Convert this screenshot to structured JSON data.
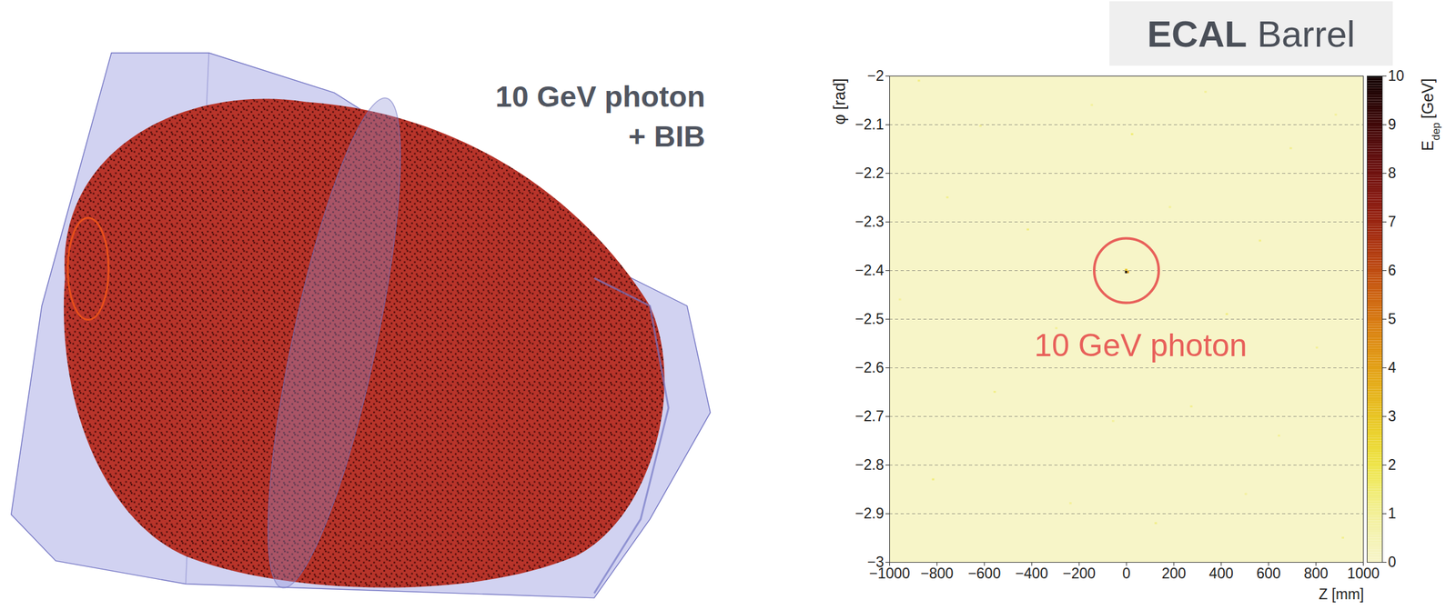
{
  "event_display": {
    "label": [
      "10 GeV photon",
      "+ BIB"
    ]
  },
  "chart_data": {
    "type": "heatmap",
    "title": "ECAL Barrel",
    "x_label": "Z [mm]",
    "y_label": "φ [rad]",
    "xlim": [
      -1000,
      1000
    ],
    "xticks": [
      -1000,
      -800,
      -600,
      -400,
      -200,
      0,
      200,
      400,
      600,
      800,
      1000
    ],
    "ylim": [
      -3,
      -2
    ],
    "yticks": [
      -3,
      -2.9,
      -2.8,
      -2.7,
      -2.6,
      -2.5,
      -2.4,
      -2.3,
      -2.2,
      -2.1,
      -2
    ],
    "grid": "y",
    "colorbar": {
      "label": {
        "text": "E",
        "subscript": "dep",
        "unit": "[GeV]"
      },
      "lim": [
        0,
        10
      ],
      "ticks": [
        0,
        1,
        2,
        3,
        4,
        5,
        6,
        7,
        8,
        9,
        10
      ]
    },
    "cells": [
      {
        "z": [
          -5,
          5
        ],
        "phi": [
          -2.406,
          -2.401
        ],
        "e": 10
      },
      {
        "z": [
          5,
          12
        ],
        "phi": [
          -2.406,
          -2.401
        ],
        "e": 4
      },
      {
        "z": [
          -5,
          5
        ],
        "phi": [
          -2.401,
          -2.397
        ],
        "e": 3
      },
      {
        "z": [
          -880,
          -870
        ],
        "phi": [
          -2.012,
          -2.008
        ],
        "e": 1.2
      },
      {
        "z": [
          -620,
          -610
        ],
        "phi": [
          -2.105,
          -2.101
        ],
        "e": 1.0
      },
      {
        "z": [
          -150,
          -140
        ],
        "phi": [
          -2.062,
          -2.058
        ],
        "e": 0.9
      },
      {
        "z": [
          20,
          30
        ],
        "phi": [
          -2.122,
          -2.118
        ],
        "e": 1.4
      },
      {
        "z": [
          330,
          340
        ],
        "phi": [
          -2.035,
          -2.031
        ],
        "e": 1.0
      },
      {
        "z": [
          690,
          700
        ],
        "phi": [
          -2.151,
          -2.147
        ],
        "e": 1.1
      },
      {
        "z": [
          880,
          890
        ],
        "phi": [
          -2.082,
          -2.078
        ],
        "e": 0.9
      },
      {
        "z": [
          -760,
          -750
        ],
        "phi": [
          -2.252,
          -2.248
        ],
        "e": 1.1
      },
      {
        "z": [
          -420,
          -410
        ],
        "phi": [
          -2.318,
          -2.314
        ],
        "e": 1.3
      },
      {
        "z": [
          180,
          190
        ],
        "phi": [
          -2.272,
          -2.268
        ],
        "e": 1.0
      },
      {
        "z": [
          560,
          570
        ],
        "phi": [
          -2.341,
          -2.337
        ],
        "e": 1.2
      },
      {
        "z": [
          -960,
          -950
        ],
        "phi": [
          -2.462,
          -2.458
        ],
        "e": 0.9
      },
      {
        "z": [
          -300,
          -290
        ],
        "phi": [
          -2.521,
          -2.517
        ],
        "e": 1.0
      },
      {
        "z": [
          420,
          430
        ],
        "phi": [
          -2.492,
          -2.488
        ],
        "e": 1.3
      },
      {
        "z": [
          800,
          810
        ],
        "phi": [
          -2.561,
          -2.557
        ],
        "e": 1.0
      },
      {
        "z": [
          -560,
          -550
        ],
        "phi": [
          -2.652,
          -2.648
        ],
        "e": 1.2
      },
      {
        "z": [
          -60,
          -50
        ],
        "phi": [
          -2.712,
          -2.708
        ],
        "e": 0.9
      },
      {
        "z": [
          270,
          280
        ],
        "phi": [
          -2.682,
          -2.678
        ],
        "e": 1.1
      },
      {
        "z": [
          640,
          650
        ],
        "phi": [
          -2.742,
          -2.738
        ],
        "e": 1.0
      },
      {
        "z": [
          -820,
          -810
        ],
        "phi": [
          -2.832,
          -2.828
        ],
        "e": 1.3
      },
      {
        "z": [
          -240,
          -230
        ],
        "phi": [
          -2.881,
          -2.877
        ],
        "e": 1.0
      },
      {
        "z": [
          120,
          130
        ],
        "phi": [
          -2.922,
          -2.918
        ],
        "e": 1.2
      },
      {
        "z": [
          500,
          510
        ],
        "phi": [
          -2.862,
          -2.858
        ],
        "e": 0.9
      },
      {
        "z": [
          910,
          920
        ],
        "phi": [
          -2.952,
          -2.948
        ],
        "e": 1.1
      }
    ],
    "annotation": {
      "text": "10 GeV photon",
      "z": 0,
      "phi": -2.4,
      "text_z": 60,
      "text_phi": -2.555
    }
  }
}
